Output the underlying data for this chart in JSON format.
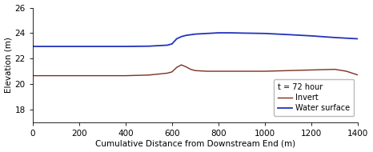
{
  "invert_x": [
    0,
    100,
    200,
    300,
    400,
    500,
    580,
    600,
    620,
    640,
    660,
    680,
    700,
    750,
    800,
    850,
    900,
    1000,
    1100,
    1200,
    1300,
    1350,
    1400
  ],
  "invert_y": [
    20.65,
    20.65,
    20.65,
    20.65,
    20.65,
    20.7,
    20.85,
    20.95,
    21.3,
    21.5,
    21.35,
    21.15,
    21.05,
    21.0,
    21.0,
    21.0,
    21.0,
    21.0,
    21.05,
    21.1,
    21.15,
    21.0,
    20.7
  ],
  "water_x": [
    0,
    100,
    200,
    300,
    400,
    500,
    580,
    600,
    620,
    640,
    660,
    700,
    750,
    800,
    850,
    900,
    1000,
    1100,
    1200,
    1300,
    1350,
    1400
  ],
  "water_y": [
    22.95,
    22.95,
    22.95,
    22.95,
    22.95,
    22.97,
    23.05,
    23.15,
    23.55,
    23.72,
    23.82,
    23.92,
    23.97,
    24.02,
    24.02,
    24.0,
    23.97,
    23.88,
    23.78,
    23.65,
    23.6,
    23.55
  ],
  "invert_color": "#7B3020",
  "water_color": "#2233BB",
  "xlim": [
    0,
    1400
  ],
  "ylim": [
    17,
    26
  ],
  "yticks": [
    18,
    20,
    22,
    24,
    26
  ],
  "xticks": [
    0,
    200,
    400,
    600,
    800,
    1000,
    1200,
    1400
  ],
  "xlabel": "Cumulative Distance from Downstream End (m)",
  "ylabel": "Elevation (m)",
  "legend_title": "t = 72 hour",
  "legend_invert": "Invert",
  "legend_water": "Water surface",
  "background_color": "#ffffff",
  "legend_box_color": "#ffffff",
  "invert_lw": 1.0,
  "water_lw": 1.3
}
